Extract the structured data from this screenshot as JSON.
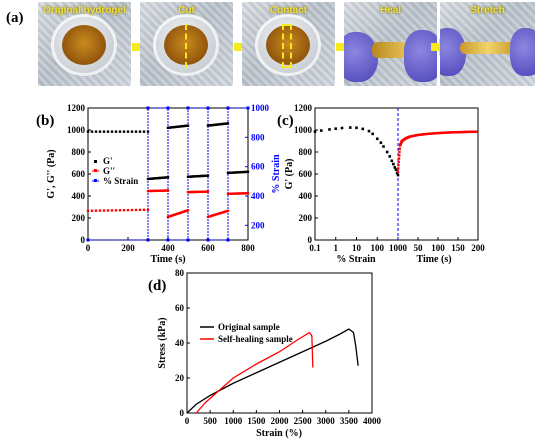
{
  "panel_a": {
    "letter": "(a)",
    "photos": [
      {
        "label": "Original hydrogel"
      },
      {
        "label": "Cut"
      },
      {
        "label": "Contact"
      },
      {
        "label": "Heal"
      },
      {
        "label": "Stretch"
      }
    ]
  },
  "colors": {
    "black": "#000000",
    "red": "#ff0000",
    "blue": "#0000ff",
    "arrow": "#f4ea1c"
  },
  "chart_data": [
    {
      "panel": "(b)",
      "type": "line",
      "xlabel": "Time (s)",
      "ylabel": "G', G'' (Pa)",
      "ylabel_right": "% Strain",
      "xlim": [
        0,
        800
      ],
      "ylim": [
        0,
        1200
      ],
      "ylim_right": [
        100,
        1000
      ],
      "xticks": [
        "0",
        "200",
        "400",
        "600",
        "800"
      ],
      "yticks": [
        "0",
        "200",
        "400",
        "600",
        "800",
        "1000",
        "1200"
      ],
      "yticks_right": [
        "200",
        "400",
        "600",
        "800",
        "1000"
      ],
      "legend": [
        "G'",
        "G''",
        "% Strain"
      ],
      "series": [
        {
          "name": "G'",
          "color": "#000000",
          "segments": [
            {
              "x": [
                0,
                300
              ],
              "y": [
                985,
                985
              ]
            },
            {
              "x": [
                300,
                400
              ],
              "y": [
                555,
                570
              ]
            },
            {
              "x": [
                400,
                500
              ],
              "y": [
                1020,
                1040
              ]
            },
            {
              "x": [
                500,
                600
              ],
              "y": [
                575,
                585
              ]
            },
            {
              "x": [
                600,
                700
              ],
              "y": [
                1040,
                1060
              ]
            },
            {
              "x": [
                700,
                800
              ],
              "y": [
                610,
                620
              ]
            }
          ]
        },
        {
          "name": "G''",
          "color": "#ff0000",
          "segments": [
            {
              "x": [
                0,
                300
              ],
              "y": [
                265,
                275
              ]
            },
            {
              "x": [
                300,
                400
              ],
              "y": [
                445,
                450
              ]
            },
            {
              "x": [
                400,
                500
              ],
              "y": [
                210,
                270
              ]
            },
            {
              "x": [
                500,
                600
              ],
              "y": [
                435,
                440
              ]
            },
            {
              "x": [
                600,
                700
              ],
              "y": [
                210,
                265
              ]
            },
            {
              "x": [
                700,
                800
              ],
              "y": [
                420,
                425
              ]
            }
          ]
        },
        {
          "name": "% Strain",
          "color": "#0000ff",
          "x": [
            0,
            300,
            300,
            400,
            400,
            500,
            500,
            600,
            600,
            700,
            700,
            800
          ],
          "y": [
            100,
            100,
            1000,
            1000,
            100,
            100,
            1000,
            1000,
            100,
            100,
            1000,
            1000
          ]
        }
      ]
    },
    {
      "panel": "(c)",
      "type": "scatter",
      "ylabel": "G' (Pa)",
      "xlabel_left": "% Strain",
      "xlabel_right": "Time (s)",
      "ylim": [
        0,
        1200
      ],
      "yticks": [
        "0",
        "200",
        "400",
        "600",
        "800",
        "1000",
        "1200"
      ],
      "xticks_left": [
        "0.1",
        "1",
        "10",
        "100",
        "1000"
      ],
      "xticks_right": [
        "50",
        "100",
        "150",
        "200"
      ],
      "strain_x": [
        0.1,
        0.2,
        0.5,
        1,
        2,
        5,
        10,
        20,
        40,
        60,
        100,
        150,
        200,
        300,
        400,
        500,
        600,
        700,
        800,
        900,
        1000
      ],
      "strain_y": [
        985,
        995,
        1005,
        1012,
        1018,
        1022,
        1020,
        1010,
        990,
        965,
        920,
        885,
        850,
        800,
        760,
        720,
        690,
        660,
        640,
        610,
        590
      ],
      "time_x": [
        0,
        5,
        10,
        20,
        30,
        50,
        75,
        100,
        125,
        150,
        175,
        200
      ],
      "time_y": [
        620,
        860,
        900,
        925,
        940,
        955,
        965,
        972,
        977,
        980,
        983,
        985
      ]
    },
    {
      "panel": "(d)",
      "type": "line",
      "xlabel": "Strain (%)",
      "ylabel": "Stress (kPa)",
      "xlim": [
        0,
        4000
      ],
      "ylim": [
        0,
        80
      ],
      "xticks": [
        "0",
        "500",
        "1000",
        "1500",
        "2000",
        "2500",
        "3000",
        "3500",
        "4000"
      ],
      "yticks": [
        "0",
        "20",
        "40",
        "60",
        "80"
      ],
      "legend": [
        "Original sample",
        "Self-healing sample"
      ],
      "series": [
        {
          "name": "Original sample",
          "color": "#000000",
          "x": [
            0,
            200,
            500,
            1000,
            1500,
            2000,
            2500,
            3000,
            3300,
            3500,
            3600,
            3650,
            3700
          ],
          "y": [
            0,
            5,
            10,
            17,
            23,
            29,
            35,
            41,
            45,
            48,
            46,
            38,
            27
          ]
        },
        {
          "name": "Self-healing sample",
          "color": "#ff0000",
          "x": [
            200,
            400,
            700,
            1000,
            1500,
            2000,
            2400,
            2650,
            2700,
            2720
          ],
          "y": [
            0,
            6,
            13,
            20,
            28,
            35,
            42,
            46,
            44,
            26
          ]
        }
      ]
    }
  ]
}
